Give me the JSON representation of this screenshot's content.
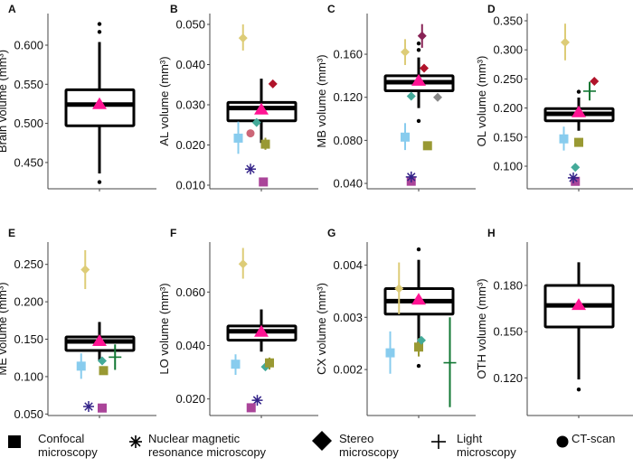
{
  "chart_data": [
    {
      "panel": "A",
      "type": "box",
      "ylabel": "Brain volume",
      "unit": "(mm³)",
      "ylim": [
        0.4164,
        0.6404
      ],
      "yticks": [
        "0.450",
        "0.500",
        "0.550",
        "0.600"
      ],
      "box": {
        "q1": 0.497,
        "median": 0.524,
        "q3": 0.543,
        "whisker_low": 0.436,
        "whisker_high": 0.604,
        "mean": 0.524,
        "outliers": [
          0.627,
          0.617,
          0.425
        ]
      },
      "points": []
    },
    {
      "panel": "B",
      "type": "box",
      "ylabel": "AL volume",
      "unit": "(mm³)",
      "ylim": [
        0.0091,
        0.0527
      ],
      "yticks": [
        "0.010",
        "0.020",
        "0.030",
        "0.040",
        "0.050"
      ],
      "box": {
        "q1": 0.026,
        "median": 0.0292,
        "q3": 0.0306,
        "whisker_low": 0.0205,
        "whisker_high": 0.0365,
        "mean": 0.0287,
        "outliers": []
      },
      "points": [
        {
          "method": "stereo",
          "color": "#ddcc77",
          "x": -0.27,
          "y": 0.0466,
          "err": [
            0.0435,
            0.05
          ]
        },
        {
          "method": "stereo",
          "color": "#b0132a",
          "x": 0.17,
          "y": 0.0352
        },
        {
          "method": "stereo",
          "color": "#44aa99",
          "x": -0.07,
          "y": 0.0256
        },
        {
          "method": "ct",
          "color": "#cc6677",
          "x": -0.16,
          "y": 0.0229
        },
        {
          "method": "confocal",
          "color": "#88ccee",
          "x": -0.34,
          "y": 0.0217,
          "err": [
            0.0178,
            0.0258
          ]
        },
        {
          "method": "confocal",
          "color": "#999933",
          "x": 0.06,
          "y": 0.0202,
          "err": [
            0.0188,
            0.0218
          ]
        },
        {
          "method": "nmr",
          "color": "#332288",
          "x": -0.16,
          "y": 0.014
        },
        {
          "method": "confocal",
          "color": "#aa4499",
          "x": 0.03,
          "y": 0.0108
        }
      ]
    },
    {
      "panel": "C",
      "type": "box",
      "ylabel": "MB volume",
      "unit": "(mm³)",
      "ylim": [
        0.035,
        0.1978
      ],
      "yticks": [
        "0.040",
        "0.080",
        "0.120",
        "0.160"
      ],
      "box": {
        "q1": 0.126,
        "median": 0.134,
        "q3": 0.14,
        "whisker_low": 0.11,
        "whisker_high": 0.157,
        "mean": 0.135,
        "outliers": [
          0.17,
          0.164,
          0.098
        ]
      },
      "points": [
        {
          "method": "stereo",
          "color": "#ddcc77",
          "x": -0.2,
          "y": 0.162,
          "err": [
            0.15,
            0.174
          ]
        },
        {
          "method": "stereo",
          "color": "#882255",
          "x": 0.05,
          "y": 0.177,
          "err": [
            0.166,
            0.188
          ]
        },
        {
          "method": "stereo",
          "color": "#b0132a",
          "x": 0.08,
          "y": 0.147
        },
        {
          "method": "stereo",
          "color": "#44aa99",
          "x": -0.11,
          "y": 0.121
        },
        {
          "method": "stereo",
          "color": "#888888",
          "x": 0.28,
          "y": 0.12
        },
        {
          "method": "confocal",
          "color": "#88ccee",
          "x": -0.2,
          "y": 0.083,
          "err": [
            0.071,
            0.096
          ]
        },
        {
          "method": "confocal",
          "color": "#999933",
          "x": 0.13,
          "y": 0.075
        },
        {
          "method": "confocal",
          "color": "#aa4499",
          "x": -0.11,
          "y": 0.042
        },
        {
          "method": "nmr",
          "color": "#332288",
          "x": -0.11,
          "y": 0.046
        }
      ]
    },
    {
      "panel": "D",
      "type": "box",
      "ylabel": "OL volume",
      "unit": "(mm³)",
      "ylim": [
        0.0612,
        0.3624
      ],
      "yticks": [
        "0.100",
        "0.150",
        "0.200",
        "0.250",
        "0.300",
        "0.350"
      ],
      "box": {
        "q1": 0.178,
        "median": 0.19,
        "q3": 0.199,
        "whisker_low": 0.161,
        "whisker_high": 0.218,
        "mean": 0.192,
        "outliers": [
          0.228
        ]
      },
      "points": [
        {
          "method": "stereo",
          "color": "#ddcc77",
          "x": -0.2,
          "y": 0.313,
          "err": [
            0.282,
            0.345
          ]
        },
        {
          "method": "stereo",
          "color": "#b0132a",
          "x": 0.23,
          "y": 0.246
        },
        {
          "method": "light",
          "color": "#117733",
          "x": 0.16,
          "y": 0.229,
          "err": [
            0.213,
            0.245
          ]
        },
        {
          "method": "confocal",
          "color": "#88ccee",
          "x": -0.22,
          "y": 0.147,
          "err": [
            0.127,
            0.168
          ]
        },
        {
          "method": "confocal",
          "color": "#999933",
          "x": 0.0,
          "y": 0.141,
          "err": [
            0.136,
            0.147
          ]
        },
        {
          "method": "stereo",
          "color": "#44aa99",
          "x": -0.05,
          "y": 0.098
        },
        {
          "method": "confocal",
          "color": "#aa4499",
          "x": -0.05,
          "y": 0.074
        },
        {
          "method": "nmr",
          "color": "#332288",
          "x": -0.08,
          "y": 0.08
        }
      ]
    },
    {
      "panel": "E",
      "type": "box",
      "ylabel": "ME volume",
      "unit": "(mm³)",
      "ylim": [
        0.048,
        0.2798
      ],
      "yticks": [
        "0.050",
        "0.100",
        "0.150",
        "0.200",
        "0.250"
      ],
      "box": {
        "q1": 0.135,
        "median": 0.147,
        "q3": 0.153,
        "whisker_low": 0.122,
        "whisker_high": 0.173,
        "mean": 0.147,
        "outliers": []
      },
      "points": [
        {
          "method": "stereo",
          "color": "#ddcc77",
          "x": -0.21,
          "y": 0.243,
          "err": [
            0.217,
            0.269
          ]
        },
        {
          "method": "confocal",
          "color": "#88ccee",
          "x": -0.27,
          "y": 0.114,
          "err": [
            0.097,
            0.131
          ]
        },
        {
          "method": "stereo",
          "color": "#44aa99",
          "x": 0.04,
          "y": 0.121
        },
        {
          "method": "confocal",
          "color": "#999933",
          "x": 0.06,
          "y": 0.108,
          "err": [
            0.103,
            0.113
          ]
        },
        {
          "method": "light",
          "color": "#117733",
          "x": 0.23,
          "y": 0.126,
          "err": [
            0.109,
            0.143
          ]
        },
        {
          "method": "nmr",
          "color": "#332288",
          "x": -0.16,
          "y": 0.06
        },
        {
          "method": "confocal",
          "color": "#aa4499",
          "x": 0.04,
          "y": 0.058
        }
      ]
    },
    {
      "panel": "F",
      "type": "box",
      "ylabel": "LO volume",
      "unit": "(mm³)",
      "ylim": [
        0.0138,
        0.0787
      ],
      "yticks": [
        "0.020",
        "0.040",
        "0.060"
      ],
      "box": {
        "q1": 0.042,
        "median": 0.0453,
        "q3": 0.0473,
        "whisker_low": 0.0377,
        "whisker_high": 0.0535,
        "mean": 0.045,
        "outliers": []
      },
      "points": [
        {
          "method": "stereo",
          "color": "#ddcc77",
          "x": -0.27,
          "y": 0.0705,
          "err": [
            0.065,
            0.0765
          ]
        },
        {
          "method": "confocal",
          "color": "#88ccee",
          "x": -0.38,
          "y": 0.033,
          "err": [
            0.029,
            0.0367
          ]
        },
        {
          "method": "stereo",
          "color": "#44aa99",
          "x": 0.06,
          "y": 0.032
        },
        {
          "method": "confocal",
          "color": "#999933",
          "x": 0.12,
          "y": 0.0335,
          "err": [
            0.031,
            0.0355
          ]
        },
        {
          "method": "nmr",
          "color": "#332288",
          "x": -0.06,
          "y": 0.0195
        },
        {
          "method": "confocal",
          "color": "#aa4499",
          "x": -0.15,
          "y": 0.0167
        }
      ]
    },
    {
      "panel": "G",
      "type": "box",
      "ylabel": "CX volume",
      "unit": "(mm³)",
      "ylim": [
        0.00112,
        0.00444
      ],
      "yticks": [
        "0.002",
        "0.003",
        "0.004"
      ],
      "box": {
        "q1": 0.00306,
        "median": 0.00331,
        "q3": 0.00355,
        "whisker_low": 0.0025,
        "whisker_high": 0.0041,
        "mean": 0.00333,
        "outliers": [
          0.0043,
          0.00207
        ]
      },
      "points": [
        {
          "method": "stereo",
          "color": "#ddcc77",
          "x": -0.29,
          "y": 0.00355,
          "err": [
            0.00306,
            0.00405
          ]
        },
        {
          "method": "confocal",
          "color": "#88ccee",
          "x": -0.42,
          "y": 0.00232,
          "err": [
            0.00192,
            0.00273
          ]
        },
        {
          "method": "confocal",
          "color": "#999933",
          "x": 0.0,
          "y": 0.00243,
          "err": [
            0.00225,
            0.0026
          ]
        },
        {
          "method": "stereo",
          "color": "#44aa99",
          "x": 0.04,
          "y": 0.00256
        },
        {
          "method": "light",
          "color": "#117733",
          "x": 0.46,
          "y": 0.00213,
          "err": [
            0.00128,
            0.003
          ]
        }
      ]
    },
    {
      "panel": "H",
      "type": "box",
      "ylabel": "OTH volume",
      "unit": "(mm³)",
      "ylim": [
        0.0956,
        0.2081
      ],
      "yticks": [
        "0.120",
        "0.150",
        "0.180"
      ],
      "box": {
        "q1": 0.153,
        "median": 0.167,
        "q3": 0.18,
        "whisker_low": 0.119,
        "whisker_high": 0.195,
        "mean": 0.167,
        "outliers": [
          0.1125
        ]
      },
      "points": []
    }
  ],
  "legend": [
    {
      "method": "confocal",
      "label": "Confocal\nmicroscopy"
    },
    {
      "method": "nmr",
      "label": "Nuclear magnetic\nresonance microscopy"
    },
    {
      "method": "stereo",
      "label": "Stereo\nmicroscopy"
    },
    {
      "method": "light",
      "label": "Light\nmicroscopy"
    },
    {
      "method": "ct",
      "label": "CT-scan"
    }
  ],
  "colors": {
    "mean": "#ff1493",
    "box": "#000000",
    "axis": "#333333"
  }
}
